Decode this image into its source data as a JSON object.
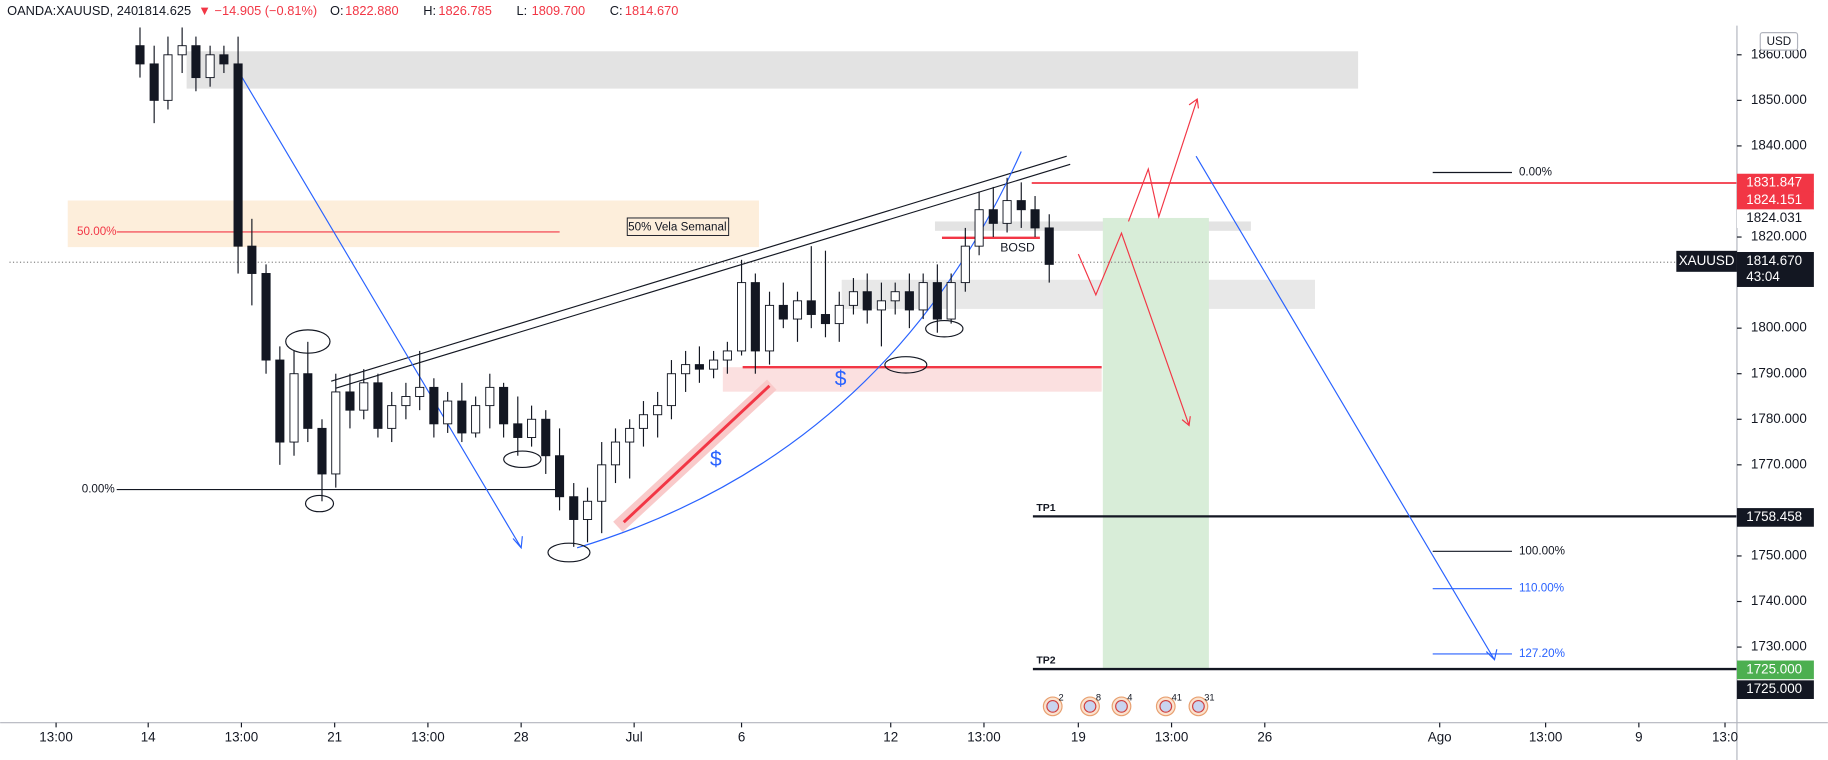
{
  "chart_data": {
    "type": "candlestick",
    "header": {
      "symbol": "OANDA:XAUUSD, 240",
      "last": "1814.625",
      "change": "▼ −14.905 (−0.81%)",
      "ohlc": [
        {
          "label": "O:",
          "value": "1822.880"
        },
        {
          "label": "H:",
          "value": "1826.785"
        },
        {
          "label": "L:",
          "value": "1809.700"
        },
        {
          "label": "C:",
          "value": "1814.670"
        }
      ]
    },
    "currency": "USD",
    "up_color": "#ffffff",
    "down_color": "#131722",
    "edge_color": "#131722",
    "x": [
      -0.22,
      0.16,
      0.53,
      0.91,
      1.28,
      1.66,
      2.03,
      2.41,
      2.78,
      3.16,
      3.53,
      3.91,
      4.28,
      4.66,
      5.03,
      5.41,
      5.78,
      6.16,
      6.53,
      6.91,
      7.28,
      7.66,
      8.03,
      8.41,
      8.78,
      9.16,
      9.53,
      9.91,
      10.28,
      10.66,
      11.03,
      11.41,
      11.78,
      12.16,
      12.53,
      12.91,
      13.28,
      13.66,
      14.03,
      14.41,
      14.78,
      15.16,
      15.53,
      15.91,
      16.28,
      16.66,
      17.03,
      17.41,
      17.78,
      18.16,
      18.53,
      18.91,
      19.28,
      19.66,
      20.03,
      20.41,
      20.78,
      21.16,
      21.53,
      21.91,
      22.28,
      22.66,
      23.03,
      23.41,
      23.78,
      24.16
    ],
    "open": [
      1862,
      1858,
      1850,
      1860,
      1862,
      1855,
      1860,
      1858,
      1818,
      1812,
      1793,
      1775,
      1790,
      1778,
      1768,
      1786,
      1782,
      1788,
      1778,
      1783,
      1785,
      1787,
      1779,
      1784,
      1777,
      1783,
      1787,
      1779,
      1776,
      1780,
      1772,
      1763,
      1758,
      1762,
      1770,
      1775,
      1778,
      1781,
      1783,
      1790,
      1792,
      1791,
      1793,
      1795,
      1810,
      1795,
      1805,
      1802,
      1806,
      1803,
      1801,
      1805,
      1808,
      1804,
      1806,
      1808,
      1804,
      1810,
      1802,
      1810,
      1818,
      1826,
      1823,
      1828,
      1826,
      1822
    ],
    "high": [
      1866,
      1862,
      1864,
      1866,
      1864,
      1862,
      1862,
      1864,
      1824,
      1814,
      1796,
      1795,
      1797,
      1780,
      1790,
      1790,
      1791,
      1790,
      1786,
      1788,
      1795,
      1789,
      1786,
      1788,
      1785,
      1790,
      1788,
      1785,
      1783,
      1782,
      1778,
      1766,
      1765,
      1775,
      1778,
      1780,
      1784,
      1786,
      1793,
      1795,
      1796,
      1795,
      1797,
      1815,
      1812,
      1808,
      1810,
      1808,
      1818,
      1817,
      1808,
      1811,
      1812,
      1810,
      1810,
      1812,
      1812,
      1814,
      1812,
      1822,
      1830,
      1831,
      1833,
      1832,
      1829,
      1825
    ],
    "low": [
      1855,
      1845,
      1848,
      1856,
      1852,
      1853,
      1856,
      1812,
      1805,
      1790,
      1770,
      1772,
      1775,
      1762,
      1765,
      1778,
      1780,
      1776,
      1775,
      1780,
      1782,
      1776,
      1777,
      1775,
      1776,
      1778,
      1776,
      1772,
      1774,
      1768,
      1760,
      1752,
      1753,
      1755,
      1766,
      1767,
      1774,
      1776,
      1780,
      1786,
      1788,
      1789,
      1790,
      1794,
      1790,
      1792,
      1800,
      1797,
      1800,
      1798,
      1797,
      1803,
      1801,
      1796,
      1803,
      1800,
      1802,
      1799,
      1801,
      1808,
      1816,
      1820,
      1821,
      1822,
      1820,
      1810
    ],
    "close": [
      1858,
      1850,
      1860,
      1862,
      1855,
      1860,
      1858,
      1818,
      1812,
      1793,
      1775,
      1790,
      1778,
      1768,
      1786,
      1782,
      1788,
      1778,
      1783,
      1785,
      1787,
      1779,
      1784,
      1777,
      1783,
      1787,
      1779,
      1776,
      1780,
      1772,
      1763,
      1758,
      1762,
      1770,
      1775,
      1778,
      1781,
      1783,
      1790,
      1792,
      1791,
      1793,
      1795,
      1810,
      1795,
      1805,
      1802,
      1806,
      1803,
      1801,
      1805,
      1808,
      1804,
      1806,
      1808,
      1804,
      1810,
      1802,
      1810,
      1818,
      1826,
      1823,
      1828,
      1826,
      1822,
      1814
    ],
    "xlim": [
      -3.72,
      42.6
    ],
    "xticks": [
      {
        "value": -2.47,
        "label": "13:00"
      },
      {
        "value": 0,
        "label": "14"
      },
      {
        "value": 2.5,
        "label": "13:00"
      },
      {
        "value": 5,
        "label": "21"
      },
      {
        "value": 7.5,
        "label": "13:00"
      },
      {
        "value": 10,
        "label": "28"
      },
      {
        "value": 13.03,
        "label": "Jul"
      },
      {
        "value": 15.91,
        "label": "6"
      },
      {
        "value": 19.91,
        "label": "12"
      },
      {
        "value": 22.41,
        "label": "13:00"
      },
      {
        "value": 24.94,
        "label": "19"
      },
      {
        "value": 27.44,
        "label": "13:00"
      },
      {
        "value": 29.94,
        "label": "26"
      },
      {
        "value": 34.63,
        "label": "Ago"
      },
      {
        "value": 37.47,
        "label": "13:00"
      },
      {
        "value": 39.97,
        "label": "9"
      },
      {
        "value": 42.28,
        "label": "13:0"
      }
    ],
    "ylim": [
      1713.4,
      1866.4
    ],
    "yticks": [
      {
        "value": 1860,
        "label": "1860.000"
      },
      {
        "value": 1850,
        "label": "1850.000"
      },
      {
        "value": 1840,
        "label": "1840.000"
      },
      {
        "value": 1820,
        "label": "1820.000"
      },
      {
        "value": 1800,
        "label": "1800.000"
      },
      {
        "value": 1790,
        "label": "1790.000"
      },
      {
        "value": 1780,
        "label": "1780.000"
      },
      {
        "value": 1770,
        "label": "1770.000"
      },
      {
        "value": 1750,
        "label": "1750.000"
      },
      {
        "value": 1740,
        "label": "1740.000"
      },
      {
        "value": 1730,
        "label": "1730.000"
      }
    ],
    "price_tags": [
      {
        "value": 1831.847,
        "color": "#f23645",
        "text_color": "#ffffff"
      },
      {
        "value": 1824.151,
        "color": "#f23645",
        "text_color": "#ffffff"
      },
      {
        "value": 1824.031,
        "color": "#ffffff",
        "text_color": "#131722"
      },
      {
        "value": 1814.67,
        "label": "1814.670",
        "color": "#131722",
        "text_color": "#ffffff"
      },
      {
        "value": 1758.458,
        "color": "#131722",
        "text_color": "#ffffff"
      },
      {
        "value": 1725,
        "label": "1725.000",
        "color": "#4caf50",
        "text_color": "#ffffff"
      },
      {
        "value": 1725,
        "label": "1725.000",
        "color": "#131722",
        "text_color": "#ffffff"
      }
    ],
    "symbol_tag": "XAUUSD",
    "countdown": "43:04",
    "annotations": {
      "weekly": "50% Vela Semanal",
      "left_50": "50.00%",
      "left_0": "0.00%",
      "bosd": "BOSD",
      "tp1": "TP1",
      "tp2": "TP2",
      "dollar1": "$",
      "dollar2": "$",
      "fib_0": "0.00%",
      "fib_100": "100.00%",
      "fib_110": "110.00%",
      "fib_127": "127.20%"
    },
    "events": [
      "2",
      "8",
      "4",
      "41",
      "31"
    ]
  }
}
